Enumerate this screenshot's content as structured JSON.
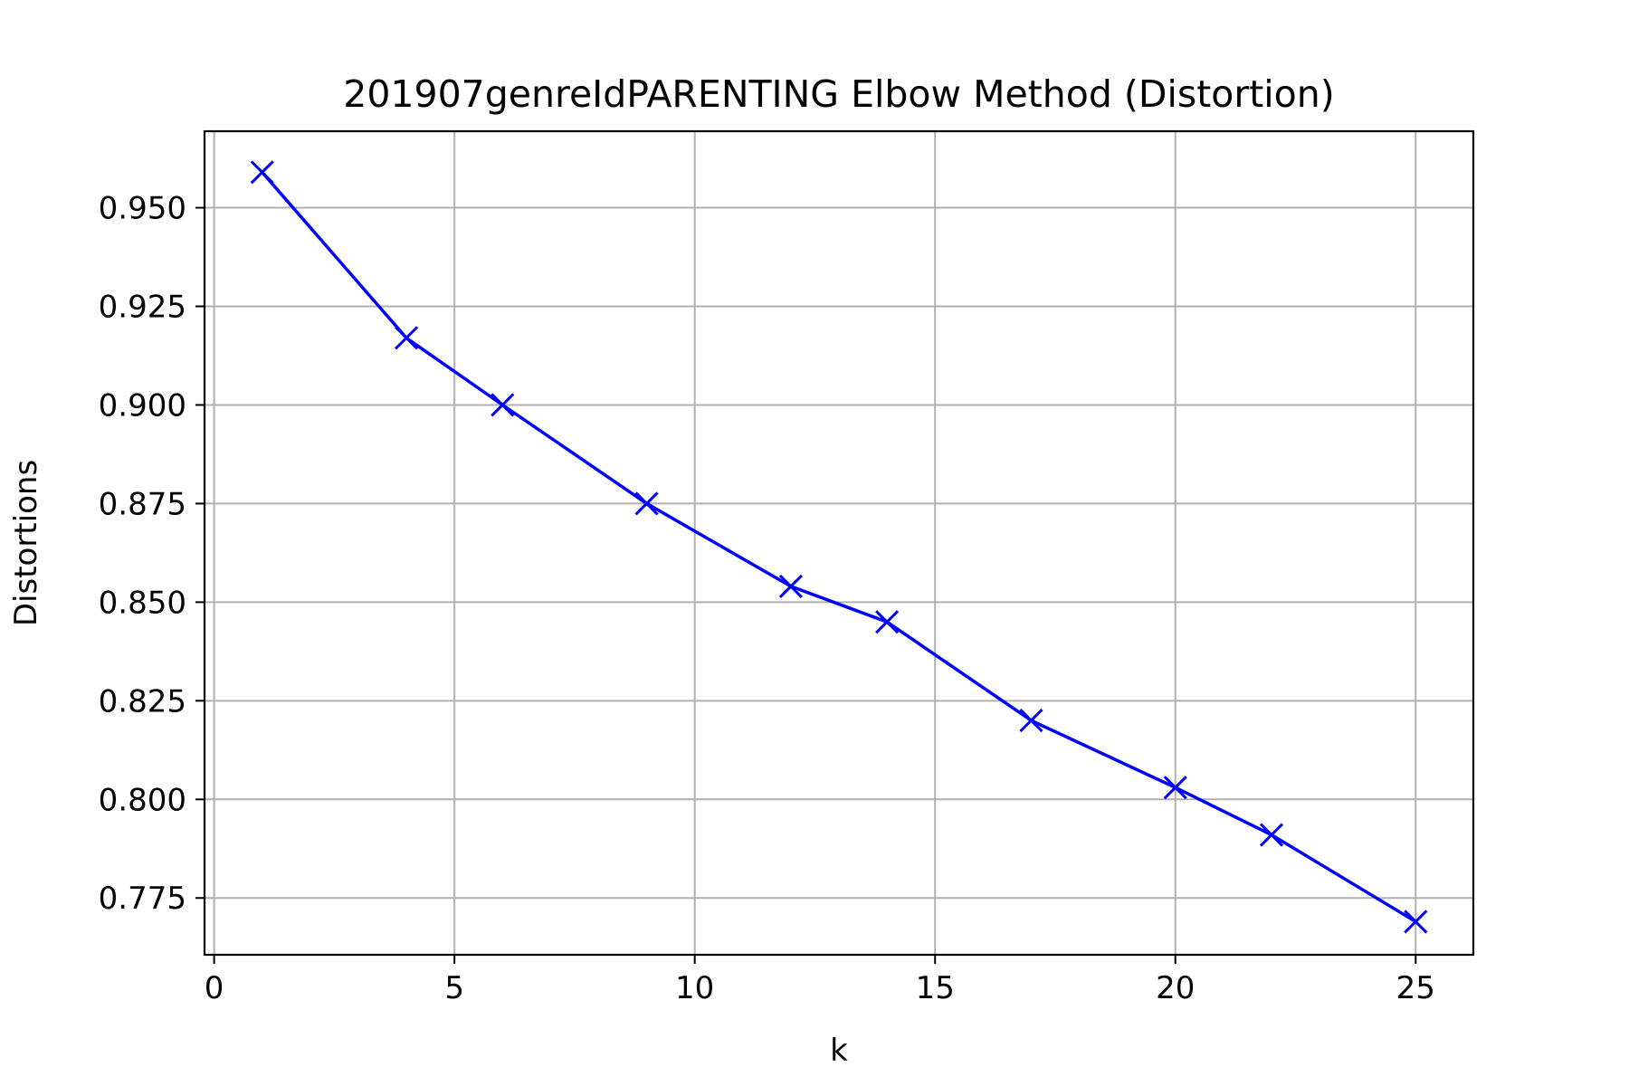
{
  "chart_data": {
    "type": "line",
    "title": "201907genreIdPARENTING Elbow Method (Distortion)",
    "xlabel": "k",
    "ylabel": "Distortions",
    "xlim": [
      -0.2,
      26.2
    ],
    "ylim": [
      0.7606,
      0.9694
    ],
    "xticks": [
      0,
      5,
      10,
      15,
      20,
      25
    ],
    "xtick_labels": [
      "0",
      "5",
      "10",
      "15",
      "20",
      "25"
    ],
    "yticks": [
      0.775,
      0.8,
      0.825,
      0.85,
      0.875,
      0.9,
      0.925,
      0.95
    ],
    "ytick_labels": [
      "0.775",
      "0.800",
      "0.825",
      "0.850",
      "0.875",
      "0.900",
      "0.925",
      "0.950"
    ],
    "grid": true,
    "series": [
      {
        "marker": "x",
        "color": "#0000ff",
        "x": [
          1,
          4,
          6,
          9,
          12,
          14,
          17,
          20,
          22,
          25
        ],
        "y": [
          0.959,
          0.917,
          0.9,
          0.875,
          0.854,
          0.845,
          0.82,
          0.803,
          0.791,
          0.769
        ]
      }
    ]
  }
}
